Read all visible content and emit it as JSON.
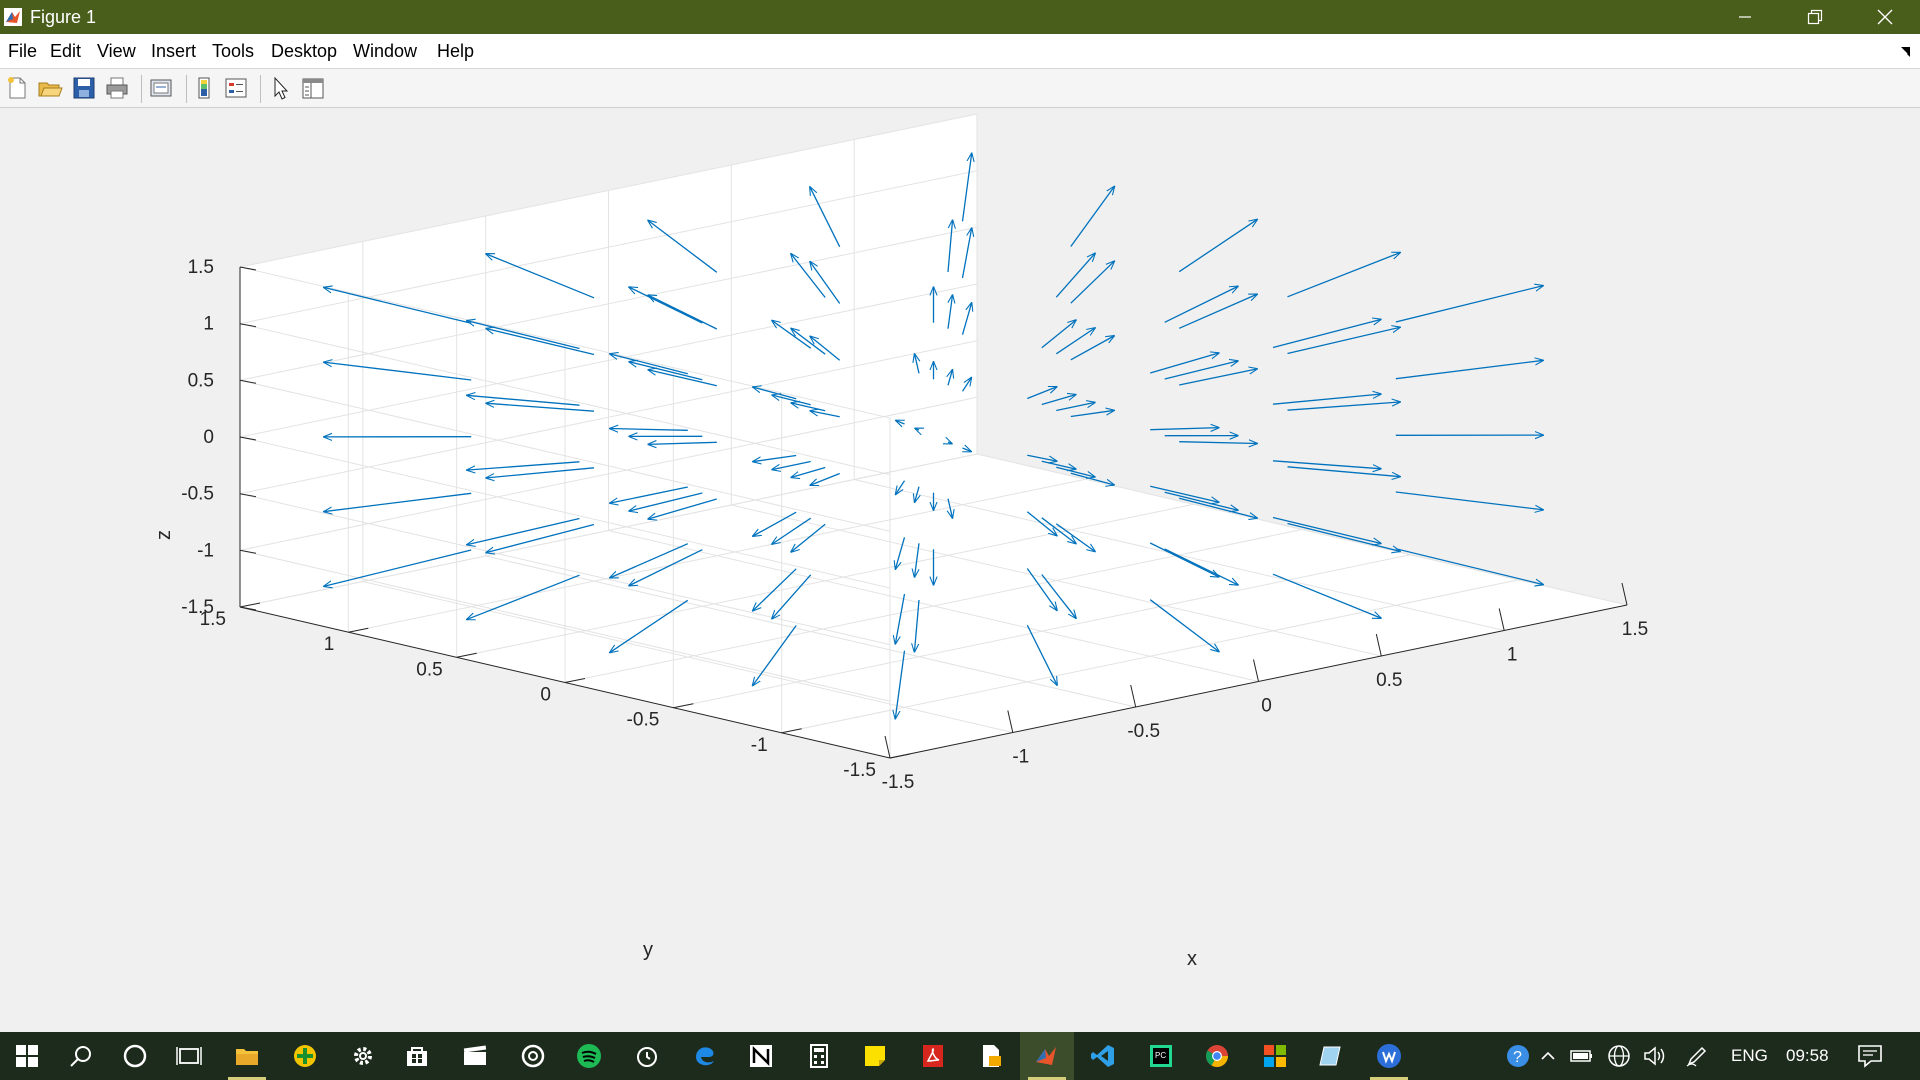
{
  "window": {
    "title": "Figure 1",
    "app_icon": "matlab-icon",
    "controls": [
      "minimize-icon",
      "restore-icon",
      "close-icon"
    ]
  },
  "menubar": {
    "items": [
      "File",
      "Edit",
      "View",
      "Insert",
      "Tools",
      "Desktop",
      "Window",
      "Help"
    ],
    "dock_icon": "dock-arrow-icon"
  },
  "toolbar": {
    "buttons": [
      "new-figure-icon",
      "open-file-icon",
      "save-icon",
      "print-icon",
      "link-plot-icon",
      "insert-colorbar-icon",
      "insert-legend-icon",
      "edit-plot-icon",
      "property-inspector-icon"
    ]
  },
  "chart_data": {
    "type": "quiver3",
    "description_of_field": "radial vector field F = (x, y, z) sampled on a 3D grid",
    "xlabel": "x",
    "ylabel": "y",
    "zlabel": "z",
    "xlim": [
      -1.5,
      1.5
    ],
    "ylim": [
      -1.5,
      1.5
    ],
    "zlim": [
      -1.5,
      1.5
    ],
    "x_ticks": [
      "-1.5",
      "-1",
      "-0.5",
      "0",
      "0.5",
      "1",
      "1.5"
    ],
    "y_ticks": [
      "-1.5",
      "-1",
      "-0.5",
      "0",
      "0.5",
      "1",
      "1.5"
    ],
    "z_ticks": [
      "-1.5",
      "-1",
      "-0.5",
      "0",
      "0.5",
      "1",
      "1.5"
    ],
    "grid": true,
    "grid_points": [
      -1,
      -0.5,
      0,
      0.5,
      1
    ],
    "arrow_color": "#0072bd"
  },
  "taskbar": {
    "apps": [
      "windows-start-icon",
      "search-icon",
      "cortana-icon",
      "task-view-icon",
      "file-explorer-icon",
      "app-green-icon",
      "settings-icon",
      "store-icon",
      "video-editor-icon",
      "groove-icon",
      "spotify-icon",
      "alarms-icon",
      "edge-icon",
      "app-n-icon",
      "calculator-icon",
      "sticky-notes-icon",
      "acrobat-icon",
      "document-app-icon",
      "matlab-icon",
      "vscode-icon",
      "pycharm-icon",
      "chrome-icon",
      "office-icon",
      "sketch-app-icon",
      "app-blue-icon"
    ],
    "tray": {
      "lang": "ENG",
      "time": "09:58"
    }
  }
}
